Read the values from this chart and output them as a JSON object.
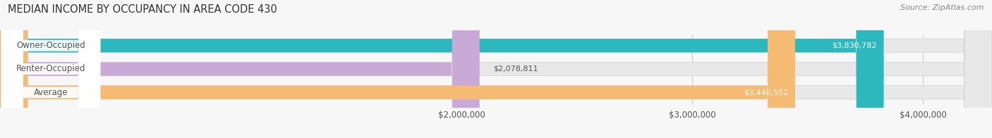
{
  "title": "MEDIAN INCOME BY OCCUPANCY IN AREA CODE 430",
  "source": "Source: ZipAtlas.com",
  "categories": [
    "Owner-Occupied",
    "Renter-Occupied",
    "Average"
  ],
  "values": [
    3830782,
    2078811,
    3446552
  ],
  "bar_colors": [
    "#2cb8bc",
    "#c9aad6",
    "#f5bb72"
  ],
  "label_color": "#555555",
  "value_labels": [
    "$3,830,782",
    "$2,078,811",
    "$3,446,552"
  ],
  "x_ticks": [
    2000000,
    3000000,
    4000000
  ],
  "x_tick_labels": [
    "$2,000,000",
    "$3,000,000",
    "$4,000,000"
  ],
  "xmin": 0,
  "xmax": 4300000,
  "xlim_display_min": 1700000,
  "bar_height": 0.58,
  "background_color": "#f7f7f7",
  "bar_bg_color": "#e8e8e8",
  "title_fontsize": 10.5,
  "source_fontsize": 8,
  "label_fontsize": 8.5,
  "value_fontsize": 8
}
